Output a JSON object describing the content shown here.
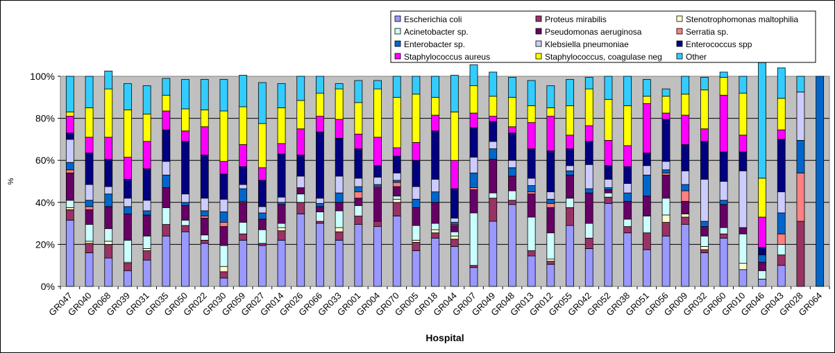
{
  "chart_data": {
    "type": "stacked-bar-100",
    "xlabel": "Hospital",
    "ylabel": "%",
    "ylim": [
      0,
      100
    ],
    "yticks": [
      "0%",
      "20%",
      "40%",
      "60%",
      "80%",
      "100%"
    ],
    "grid": true,
    "legend_position": "top-right",
    "plot_background": "#c0c0c0",
    "categories": [
      "GR047",
      "GR040",
      "GR068",
      "GR039",
      "GR031",
      "GR035",
      "GR050",
      "GR022",
      "GR030",
      "GR059",
      "GR027",
      "GR014",
      "GR026",
      "GR066",
      "GR033",
      "GR001",
      "GR004",
      "GR070",
      "GR005",
      "GR018",
      "GR044",
      "GR007",
      "GR049",
      "GR048",
      "GR013",
      "GR012",
      "GR055",
      "GR042",
      "GR052",
      "GR038",
      "GR051",
      "GR056",
      "GR009",
      "GR032",
      "GR060",
      "GR010",
      "GR046",
      "GR043",
      "GR028",
      "GR064"
    ],
    "series": [
      {
        "name": "Escherichia coli",
        "color": "#9999ff",
        "values": [
          31.5,
          16,
          13.5,
          7.5,
          12.5,
          24,
          26,
          20.5,
          4,
          22,
          19.5,
          22,
          34.5,
          30,
          22,
          29.5,
          28.5,
          33.5,
          17,
          23,
          19,
          9,
          31,
          39,
          14.5,
          10.5,
          29,
          18,
          39.5,
          25.5,
          17.5,
          24,
          29.5,
          16,
          23,
          8,
          3.5,
          10,
          0,
          0
        ]
      },
      {
        "name": "Proteus mirabilis",
        "color": "#993366",
        "values": [
          5,
          4.5,
          6.5,
          3.5,
          4.5,
          5.5,
          3,
          1.5,
          3,
          3,
          1,
          4.5,
          5.5,
          1,
          4,
          4,
          2.5,
          6.5,
          4,
          2.5,
          3.5,
          1,
          11,
          2,
          2.5,
          1.5,
          8.5,
          5,
          3,
          3,
          8,
          6.5,
          3.5,
          1.5,
          2,
          0,
          0,
          5,
          31,
          0
        ]
      },
      {
        "name": "Stenotrophomonas maltophilia",
        "color": "#ffffcc",
        "values": [
          1,
          1,
          1.5,
          0.5,
          1,
          0,
          0,
          0,
          2.5,
          0,
          0,
          1.5,
          0,
          0,
          2,
          0,
          0,
          1.5,
          1,
          1.5,
          1.5,
          0,
          0,
          0,
          0,
          1,
          0,
          0,
          0,
          0,
          0,
          3.5,
          1.5,
          1.5,
          0,
          3,
          0,
          0,
          0,
          0
        ]
      },
      {
        "name": "Acinetobacter sp.",
        "color": "#ccffff",
        "values": [
          3.5,
          8,
          6,
          10.5,
          6,
          8,
          2.5,
          2.5,
          10,
          5.5,
          6.5,
          2,
          4,
          4.5,
          8,
          5,
          0,
          1.5,
          7,
          3,
          2,
          25,
          2.5,
          4.5,
          16,
          12.5,
          4.5,
          7,
          2,
          3.5,
          8,
          8,
          0,
          5,
          3,
          14,
          4,
          5,
          0,
          0
        ]
      },
      {
        "name": "Pseudomonas aeruginosa",
        "color": "#660066",
        "values": [
          13,
          7,
          10.5,
          12.5,
          10,
          9.5,
          7,
          8,
          9,
          9.5,
          5,
          9,
          3,
          2.5,
          4,
          3.5,
          16,
          4.5,
          8.5,
          10,
          3,
          11,
          16,
          7,
          11,
          12,
          11,
          14.5,
          1.5,
          8.5,
          9.5,
          11,
          6,
          4.5,
          11,
          3,
          4,
          0,
          0,
          0
        ]
      },
      {
        "name": "Serratia sp.",
        "color": "#ff8080",
        "values": [
          1.5,
          1.5,
          0,
          0,
          0,
          0,
          0,
          1,
          2,
          0.5,
          0,
          0,
          0,
          0,
          0,
          3,
          0.5,
          2,
          0,
          0,
          0.5,
          1,
          0,
          0,
          1,
          2,
          0,
          0,
          0,
          0,
          0,
          1,
          5,
          0,
          0,
          0,
          0,
          5,
          23,
          0
        ]
      },
      {
        "name": "Enterobacter sp.",
        "color": "#0066cc",
        "values": [
          3.5,
          3,
          6,
          3.5,
          2,
          6,
          1.5,
          2.5,
          5,
          6,
          3,
          1,
          0,
          1.5,
          4.5,
          2.5,
          1,
          1,
          4,
          5,
          1,
          7,
          5,
          4,
          3,
          2,
          2,
          2,
          1,
          4,
          10,
          1.5,
          3,
          2.5,
          2,
          0,
          3.5,
          10,
          15.5,
          100
        ]
      },
      {
        "name": "Klebsiella pneumoniae",
        "color": "#ccccff",
        "values": [
          11,
          7.5,
          3.5,
          4,
          5,
          6.5,
          4,
          6,
          6,
          2,
          3,
          2.5,
          5.5,
          2.5,
          8,
          4,
          3.5,
          3.5,
          6,
          6,
          2,
          7.5,
          3.5,
          3.5,
          3.5,
          3.5,
          2.5,
          11.5,
          4,
          4.5,
          4.5,
          4,
          6.5,
          20,
          9,
          27,
          0,
          10,
          23,
          0
        ]
      },
      {
        "name": "Enterococcus spp",
        "color": "#000080",
        "values": [
          3,
          15,
          13,
          9,
          15,
          15,
          25,
          20.5,
          12,
          8.5,
          12.5,
          20.5,
          10,
          31.5,
          18,
          14,
          5.5,
          8,
          12.5,
          23,
          14,
          14,
          9.5,
          13,
          14,
          19.5,
          8,
          11,
          6.5,
          8,
          6,
          20,
          12.5,
          18,
          14,
          9,
          3.5,
          25,
          0,
          0
        ]
      },
      {
        "name": "Staphylococcus aureus",
        "color": "#ff00ff",
        "values": [
          8,
          7.5,
          10.5,
          10.5,
          13,
          9,
          5,
          13.5,
          6,
          10.5,
          6,
          5,
          12.5,
          7.5,
          9,
          7,
          13.5,
          4,
          8.5,
          7.5,
          13.5,
          7,
          2.5,
          3,
          12.5,
          16.5,
          6.5,
          7.5,
          12,
          10,
          23.5,
          3,
          14,
          6,
          27,
          8,
          14.5,
          4.5,
          0,
          0
        ]
      },
      {
        "name": "Staphylococcus, coagulase neg",
        "color": "#ffff00",
        "values": [
          2,
          14,
          23,
          22.5,
          13,
          7.5,
          10.5,
          8,
          24,
          18,
          21,
          17,
          13.5,
          11,
          14.5,
          15,
          23,
          24,
          23,
          8.5,
          23,
          13,
          9.5,
          14,
          8,
          4,
          14,
          17.5,
          19.5,
          19,
          3.5,
          8,
          10,
          18.5,
          8.5,
          20,
          18.5,
          15,
          0,
          0
        ]
      },
      {
        "name": "Other",
        "color": "#33ccff",
        "values": [
          17,
          15,
          8.5,
          12.5,
          13.5,
          8,
          14,
          14.5,
          15,
          15,
          19.5,
          11.5,
          11.5,
          8,
          2.5,
          10.5,
          4,
          10,
          8.5,
          10,
          17.5,
          10,
          11.5,
          9.5,
          12,
          10.5,
          12.5,
          5.5,
          11,
          14,
          8,
          3.5,
          8.5,
          6,
          2.5,
          8,
          55,
          14.5,
          7.5,
          0
        ]
      }
    ]
  }
}
